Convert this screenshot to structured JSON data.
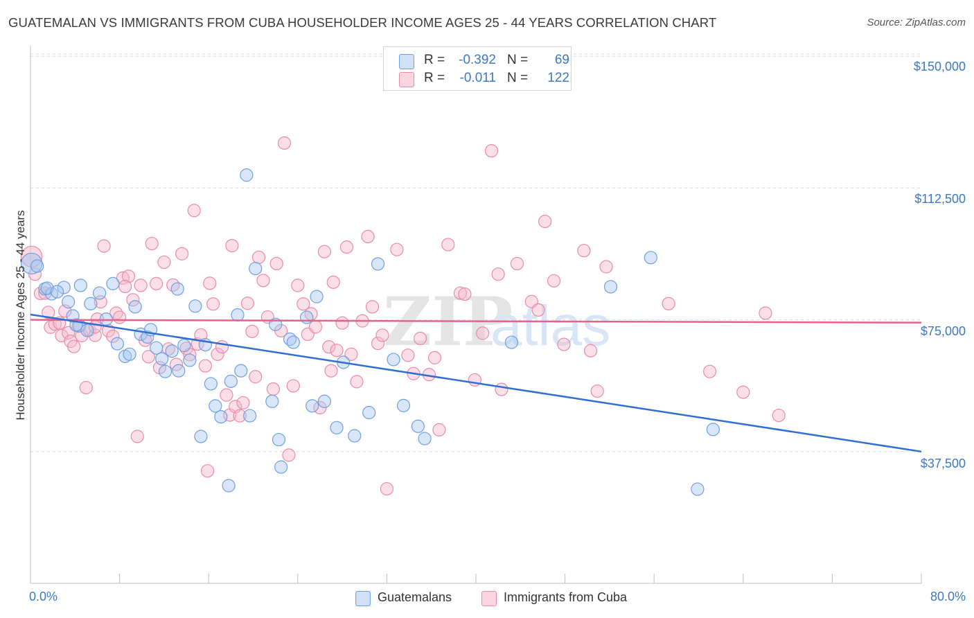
{
  "title": "GUATEMALAN VS IMMIGRANTS FROM CUBA HOUSEHOLDER INCOME AGES 25 - 44 YEARS CORRELATION CHART",
  "source": "Source: ZipAtlas.com",
  "watermark": {
    "zip": "ZIP",
    "atlas": "atlas"
  },
  "legend_top": {
    "rows": [
      {
        "r_label": "R =",
        "r_value": "-0.392",
        "n_label": "N =",
        "n_value": "69",
        "color": "#a9c8f0"
      },
      {
        "r_label": "R =",
        "r_value": "-0.011",
        "n_label": "N =",
        "n_value": "122",
        "color": "#f4b8cb"
      }
    ]
  },
  "legend_bottom": {
    "items": [
      "Guatemalans",
      "Immigrants from Cuba"
    ]
  },
  "chart_data": {
    "type": "scatter",
    "title": "GUATEMALAN VS IMMIGRANTS FROM CUBA HOUSEHOLDER INCOME AGES 25 - 44 YEARS CORRELATION CHART",
    "xlabel": "",
    "ylabel": "Householder Income Ages 25 - 44 years",
    "xlim": [
      0,
      80
    ],
    "ylim": [
      0,
      153000
    ],
    "x_tick_labels": [
      "0.0%",
      "80.0%"
    ],
    "y_ticks": [
      {
        "value": 37500,
        "label": "$37,500"
      },
      {
        "value": 75000,
        "label": "$75,000"
      },
      {
        "value": 112500,
        "label": "$112,500"
      },
      {
        "value": 150000,
        "label": "$150,000"
      }
    ],
    "grid": true,
    "colors": {
      "blue_fill": "#a9c8f0",
      "blue_stroke": "#6f9fe0",
      "blue_line": "#2f6fd1",
      "pink_fill": "#f4b8cb",
      "pink_stroke": "#e88aa8",
      "pink_line": "#e8618c",
      "axis_text": "#3b78c4"
    },
    "series": [
      {
        "name": "Guatemalans",
        "color": "#a9c8f0",
        "trend": {
          "x": [
            0,
            80
          ],
          "y": [
            76500,
            37500
          ]
        },
        "points": [
          [
            0.1,
            91000
          ],
          [
            0.6,
            90300
          ],
          [
            1.3,
            83800
          ],
          [
            1.9,
            82400
          ],
          [
            3.0,
            84200
          ],
          [
            3.4,
            80100
          ],
          [
            4.5,
            84800
          ],
          [
            3.8,
            76100
          ],
          [
            4.4,
            73300
          ],
          [
            5.1,
            72000
          ],
          [
            5.4,
            79600
          ],
          [
            6.2,
            82600
          ],
          [
            6.8,
            75200
          ],
          [
            7.4,
            85300
          ],
          [
            7.8,
            68200
          ],
          [
            8.5,
            64600
          ],
          [
            8.9,
            65200
          ],
          [
            9.4,
            78700
          ],
          [
            9.9,
            70900
          ],
          [
            10.5,
            70100
          ],
          [
            10.8,
            72200
          ],
          [
            11.3,
            67000
          ],
          [
            11.8,
            63900
          ],
          [
            12.1,
            60300
          ],
          [
            12.7,
            66100
          ],
          [
            13.3,
            60500
          ],
          [
            13.2,
            83800
          ],
          [
            13.8,
            67700
          ],
          [
            14.3,
            63500
          ],
          [
            14.8,
            78900
          ],
          [
            15.3,
            41800
          ],
          [
            15.7,
            67900
          ],
          [
            16.2,
            56800
          ],
          [
            16.6,
            50500
          ],
          [
            17.1,
            47400
          ],
          [
            17.8,
            27800
          ],
          [
            18.0,
            57500
          ],
          [
            18.6,
            76400
          ],
          [
            18.9,
            60500
          ],
          [
            19.4,
            116200
          ],
          [
            19.7,
            47700
          ],
          [
            20.2,
            89600
          ],
          [
            21.7,
            51800
          ],
          [
            22.0,
            73700
          ],
          [
            22.3,
            40900
          ],
          [
            22.5,
            33100
          ],
          [
            23.3,
            69500
          ],
          [
            23.6,
            68600
          ],
          [
            24.8,
            75700
          ],
          [
            25.3,
            50500
          ],
          [
            25.7,
            81600
          ],
          [
            26.4,
            51800
          ],
          [
            27.5,
            44300
          ],
          [
            28.1,
            62900
          ],
          [
            29.1,
            42000
          ],
          [
            30.4,
            48600
          ],
          [
            31.2,
            90900
          ],
          [
            32.6,
            63700
          ],
          [
            33.5,
            50600
          ],
          [
            34.8,
            44700
          ],
          [
            35.4,
            41200
          ],
          [
            43.2,
            68600
          ],
          [
            52.1,
            84400
          ],
          [
            55.7,
            92700
          ],
          [
            59.9,
            26800
          ],
          [
            61.3,
            43800
          ],
          [
            1.5,
            84000
          ],
          [
            2.4,
            83000
          ],
          [
            4.1,
            73500
          ]
        ]
      },
      {
        "name": "Immigrants from Cuba",
        "color": "#f4b8cb",
        "trend": {
          "x": [
            0,
            80
          ],
          "y": [
            75000,
            74200
          ]
        },
        "points": [
          [
            0.1,
            93000
          ],
          [
            0.4,
            88000
          ],
          [
            0.9,
            82500
          ],
          [
            1.3,
            82600
          ],
          [
            1.6,
            77100
          ],
          [
            1.8,
            72900
          ],
          [
            2.2,
            73800
          ],
          [
            2.6,
            74100
          ],
          [
            2.8,
            70500
          ],
          [
            3.1,
            77500
          ],
          [
            3.4,
            71300
          ],
          [
            3.6,
            68900
          ],
          [
            3.9,
            67400
          ],
          [
            4.3,
            73200
          ],
          [
            4.6,
            70500
          ],
          [
            5.0,
            55700
          ],
          [
            5.3,
            72100
          ],
          [
            5.8,
            70600
          ],
          [
            6.0,
            75200
          ],
          [
            6.3,
            80100
          ],
          [
            6.6,
            96000
          ],
          [
            7.0,
            71900
          ],
          [
            7.4,
            70300
          ],
          [
            7.7,
            76900
          ],
          [
            8.0,
            75700
          ],
          [
            8.3,
            86900
          ],
          [
            8.8,
            87400
          ],
          [
            8.5,
            84500
          ],
          [
            9.2,
            80700
          ],
          [
            9.6,
            41800
          ],
          [
            9.9,
            84800
          ],
          [
            10.3,
            69200
          ],
          [
            10.6,
            64500
          ],
          [
            10.9,
            96700
          ],
          [
            11.3,
            85300
          ],
          [
            11.6,
            61400
          ],
          [
            12.0,
            91400
          ],
          [
            12.4,
            66700
          ],
          [
            12.8,
            84900
          ],
          [
            13.1,
            62300
          ],
          [
            13.6,
            93800
          ],
          [
            14.0,
            66900
          ],
          [
            14.3,
            65100
          ],
          [
            14.7,
            106100
          ],
          [
            15.0,
            68100
          ],
          [
            15.3,
            70700
          ],
          [
            15.7,
            61900
          ],
          [
            15.9,
            32000
          ],
          [
            16.1,
            85400
          ],
          [
            16.4,
            79500
          ],
          [
            16.8,
            65200
          ],
          [
            17.2,
            67300
          ],
          [
            17.6,
            53600
          ],
          [
            17.9,
            47900
          ],
          [
            18.1,
            96100
          ],
          [
            18.4,
            50300
          ],
          [
            18.8,
            47700
          ],
          [
            19.1,
            51400
          ],
          [
            19.5,
            79700
          ],
          [
            19.9,
            71700
          ],
          [
            20.2,
            58800
          ],
          [
            20.5,
            92800
          ],
          [
            20.9,
            86200
          ],
          [
            21.3,
            75800
          ],
          [
            21.8,
            55300
          ],
          [
            22.1,
            91000
          ],
          [
            22.5,
            71900
          ],
          [
            22.8,
            125300
          ],
          [
            23.2,
            36500
          ],
          [
            23.6,
            56200
          ],
          [
            24.0,
            84800
          ],
          [
            24.5,
            79500
          ],
          [
            24.9,
            70900
          ],
          [
            25.2,
            76700
          ],
          [
            25.6,
            73000
          ],
          [
            26.0,
            50000
          ],
          [
            26.4,
            94400
          ],
          [
            26.8,
            67300
          ],
          [
            27.2,
            85700
          ],
          [
            27.5,
            66300
          ],
          [
            28.0,
            74100
          ],
          [
            28.4,
            95700
          ],
          [
            28.8,
            65200
          ],
          [
            29.3,
            57400
          ],
          [
            29.8,
            74700
          ],
          [
            30.3,
            98700
          ],
          [
            30.7,
            78700
          ],
          [
            31.2,
            68300
          ],
          [
            31.6,
            70600
          ],
          [
            32.0,
            26900
          ],
          [
            32.9,
            95000
          ],
          [
            33.9,
            64900
          ],
          [
            34.4,
            59700
          ],
          [
            35.0,
            69700
          ],
          [
            35.8,
            59400
          ],
          [
            36.3,
            64200
          ],
          [
            36.7,
            43700
          ],
          [
            37.5,
            96400
          ],
          [
            38.6,
            82600
          ],
          [
            39.0,
            82300
          ],
          [
            39.9,
            57900
          ],
          [
            40.6,
            71200
          ],
          [
            41.4,
            123100
          ],
          [
            42.0,
            88000
          ],
          [
            42.3,
            55200
          ],
          [
            43.7,
            91000
          ],
          [
            45.0,
            80200
          ],
          [
            45.6,
            77800
          ],
          [
            46.2,
            103000
          ],
          [
            47.0,
            86100
          ],
          [
            47.9,
            68000
          ],
          [
            49.7,
            94700
          ],
          [
            50.3,
            66200
          ],
          [
            50.9,
            54700
          ],
          [
            51.7,
            90100
          ],
          [
            57.3,
            79600
          ],
          [
            61.0,
            60300
          ],
          [
            64.0,
            54400
          ],
          [
            66.0,
            76900
          ],
          [
            67.2,
            47800
          ],
          [
            5.8,
            73000
          ],
          [
            27.0,
            60500
          ]
        ]
      }
    ]
  }
}
